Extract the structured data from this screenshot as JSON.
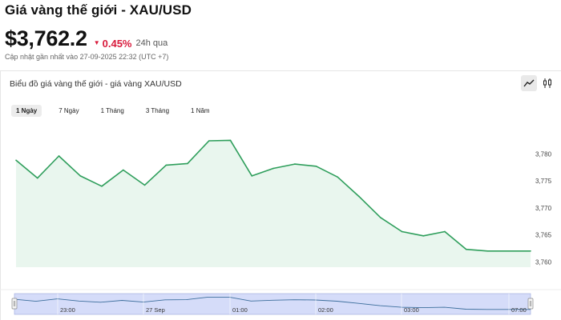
{
  "header": {
    "title": "Giá vàng thế giới - XAU/USD",
    "price": "$3,762.2",
    "change": "0.45%",
    "change_period": "24h qua",
    "updated": "Cập nhật gần nhất vào 27-09-2025 22:32 (UTC +7)",
    "down_color": "#d81b3c"
  },
  "chart_panel": {
    "title": "Biểu đồ giá vàng thế giới - giá vàng XAU/USD",
    "tools": [
      {
        "icon": "line-chart-icon",
        "active": true
      },
      {
        "icon": "candlestick-icon",
        "active": false
      }
    ],
    "ranges": [
      {
        "label": "1 Ngày",
        "active": true
      },
      {
        "label": "7 Ngày",
        "active": false
      },
      {
        "label": "1 Tháng",
        "active": false
      },
      {
        "label": "3 Tháng",
        "active": false
      },
      {
        "label": "1 Năm",
        "active": false
      }
    ]
  },
  "chart_data": {
    "type": "area",
    "color": "#2e9e5b",
    "fill": "#e9f6ee",
    "ylim": [
      3759,
      3783
    ],
    "yticks": [
      3780,
      3775,
      3770,
      3765,
      3760
    ],
    "ytick_labels": [
      "3,780",
      "3,775",
      "3,770",
      "3,765",
      "3,760"
    ],
    "x": [
      0,
      1,
      2,
      3,
      4,
      5,
      6,
      7,
      8,
      9,
      10,
      11,
      12,
      13,
      14,
      15,
      16,
      17,
      18,
      19,
      20,
      21,
      22,
      23,
      24
    ],
    "values": [
      3778.8,
      3775.5,
      3779.6,
      3775.9,
      3774.0,
      3777.0,
      3774.2,
      3777.9,
      3778.2,
      3782.4,
      3782.5,
      3775.9,
      3777.3,
      3778.1,
      3777.7,
      3775.7,
      3772.1,
      3768.2,
      3765.6,
      3764.8,
      3765.6,
      3762.3,
      3762.0,
      3762.0,
      3762.0
    ],
    "navigator": {
      "labels": [
        "23:00",
        "27 Sep",
        "01:00",
        "02:00",
        "03:00",
        "07:00"
      ],
      "band_color": "#c7d0f7"
    }
  }
}
